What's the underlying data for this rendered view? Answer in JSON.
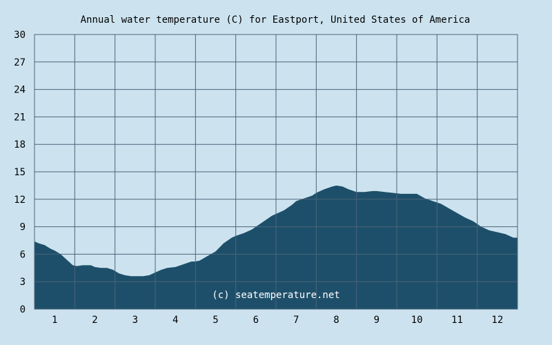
{
  "chart_data": {
    "type": "area",
    "title": "Annual water temperature (C) for Eastport, United States of America",
    "xlabel": "",
    "ylabel": "",
    "watermark": "(c) seatemperature.net",
    "xlim": [
      0.5,
      12.5
    ],
    "ylim": [
      0,
      30
    ],
    "y_ticks": [
      0,
      3,
      6,
      9,
      12,
      15,
      18,
      21,
      24,
      27,
      30
    ],
    "x_tick_labels": [
      "1",
      "2",
      "3",
      "4",
      "5",
      "6",
      "7",
      "8",
      "9",
      "10",
      "11",
      "12"
    ],
    "grid": true,
    "colors": {
      "background": "#cce3ef",
      "plot_background": "#cce3ef",
      "fill": "#1e4f6a",
      "grid": "#4a6478",
      "text": "#000000",
      "watermark": "#ffffff"
    },
    "series": [
      {
        "x": [
          0.5,
          0.6,
          0.75,
          0.9,
          1.0,
          1.15,
          1.3,
          1.45,
          1.55,
          1.7,
          1.9,
          2.0,
          2.15,
          2.3,
          2.45,
          2.6,
          2.75,
          2.9,
          3.0,
          3.2,
          3.35,
          3.5,
          3.65,
          3.8,
          4.0,
          4.2,
          4.4,
          4.5,
          4.6,
          4.8,
          5.0,
          5.2,
          5.4,
          5.5,
          5.7,
          5.9,
          6.0,
          6.2,
          6.4,
          6.5,
          6.7,
          6.9,
          7.0,
          7.2,
          7.4,
          7.5,
          7.7,
          7.9,
          8.0,
          8.15,
          8.3,
          8.5,
          8.7,
          8.9,
          9.0,
          9.2,
          9.4,
          9.6,
          9.8,
          10.0,
          10.2,
          10.4,
          10.6,
          10.8,
          11.0,
          11.2,
          11.4,
          11.6,
          11.8,
          12.0,
          12.2,
          12.4,
          12.5
        ],
        "values": [
          7.4,
          7.2,
          7.0,
          6.6,
          6.4,
          6.0,
          5.4,
          4.8,
          4.7,
          4.8,
          4.8,
          4.6,
          4.5,
          4.5,
          4.3,
          3.9,
          3.7,
          3.6,
          3.6,
          3.6,
          3.7,
          4.0,
          4.3,
          4.5,
          4.6,
          4.9,
          5.2,
          5.2,
          5.3,
          5.8,
          6.3,
          7.2,
          7.8,
          8.0,
          8.3,
          8.7,
          9.0,
          9.6,
          10.2,
          10.4,
          10.8,
          11.4,
          11.8,
          12.1,
          12.4,
          12.7,
          13.1,
          13.4,
          13.5,
          13.4,
          13.1,
          12.8,
          12.8,
          12.9,
          12.9,
          12.8,
          12.7,
          12.6,
          12.6,
          12.6,
          12.1,
          11.8,
          11.5,
          11.0,
          10.5,
          10.0,
          9.6,
          9.0,
          8.6,
          8.4,
          8.2,
          7.8,
          7.8
        ]
      }
    ]
  }
}
